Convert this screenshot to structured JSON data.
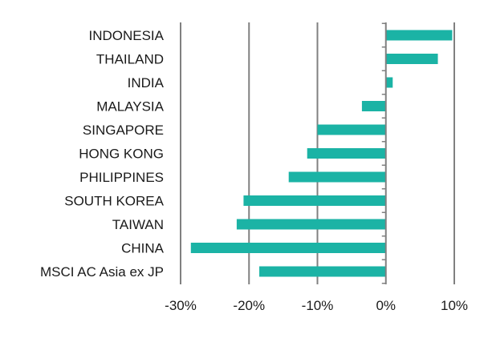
{
  "chart_data": {
    "type": "bar",
    "orientation": "horizontal",
    "categories": [
      "INDONESIA",
      "THAILAND",
      "INDIA",
      "MALAYSIA",
      "SINGAPORE",
      "HONG KONG",
      "PHILIPPINES",
      "SOUTH KOREA",
      "TAIWAN",
      "CHINA",
      "MSCI AC Asia ex JP"
    ],
    "values": [
      9.7,
      7.6,
      1.0,
      -3.5,
      -10.0,
      -11.5,
      -14.2,
      -20.8,
      -21.8,
      -28.5,
      -18.5
    ],
    "title": "",
    "xlabel": "",
    "ylabel": "",
    "xlim": [
      -30,
      10
    ],
    "xticks": [
      -30,
      -20,
      -10,
      0,
      10
    ],
    "xtick_labels": [
      "-30%",
      "-20%",
      "-10%",
      "0%",
      "10%"
    ],
    "grid": "vertical",
    "legend": "none",
    "colors": {
      "bar": "#1bb3a5",
      "grid": "#808080",
      "text": "#1a1a1a"
    }
  }
}
